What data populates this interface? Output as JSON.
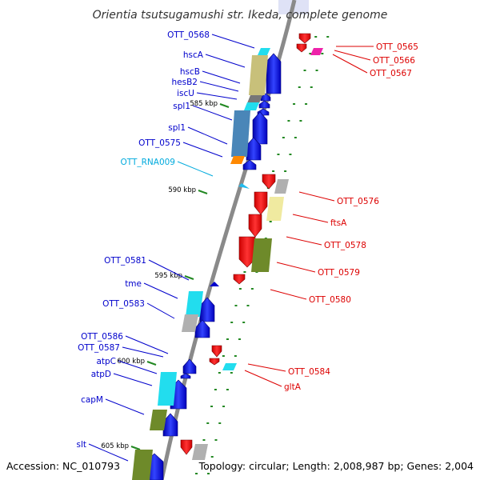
{
  "title": "Orientia tsutsugamushi str. Ikeda, complete genome",
  "accession": "Accession: NC_010793",
  "topology": "Topology: circular; Length: 2,008,987 bp; Genes: 2,004",
  "colors": {
    "forward_label": "#0000cc",
    "reverse_label": "#dd0000",
    "rna_label": "#00aadd",
    "backbone": "#888888",
    "tick_marks": "#228822"
  },
  "scale_ticks": [
    "585 kbp",
    "590 kbp",
    "595 kbp",
    "600 kbp",
    "605 kbp"
  ],
  "forward_genes": [
    "OTT_0568",
    "hscA",
    "hscB",
    "hesB2",
    "iscU",
    "spl1",
    "spl1",
    "OTT_0575",
    "OTT_RNA009",
    "OTT_0581",
    "tme",
    "OTT_0583",
    "OTT_0586",
    "OTT_0587",
    "atpC",
    "atpD",
    "capM",
    "slt"
  ],
  "reverse_genes": [
    "OTT_0565",
    "OTT_0566",
    "OTT_0567",
    "OTT_0576",
    "ftsA",
    "OTT_0578",
    "OTT_0579",
    "OTT_0580",
    "OTT_0584",
    "gltA"
  ],
  "function_colors": [
    {
      "name": "cyan",
      "hex": "#22ddee"
    },
    {
      "name": "khaki",
      "hex": "#c8c07a"
    },
    {
      "name": "steel-blue",
      "hex": "#4a86b8"
    },
    {
      "name": "grey",
      "hex": "#b0b0b0"
    },
    {
      "name": "orange",
      "hex": "#ff8800"
    },
    {
      "name": "olive",
      "hex": "#6e8a2a"
    },
    {
      "name": "pale-yellow",
      "hex": "#f0eaa0"
    },
    {
      "name": "magenta",
      "hex": "#ee22aa"
    }
  ]
}
